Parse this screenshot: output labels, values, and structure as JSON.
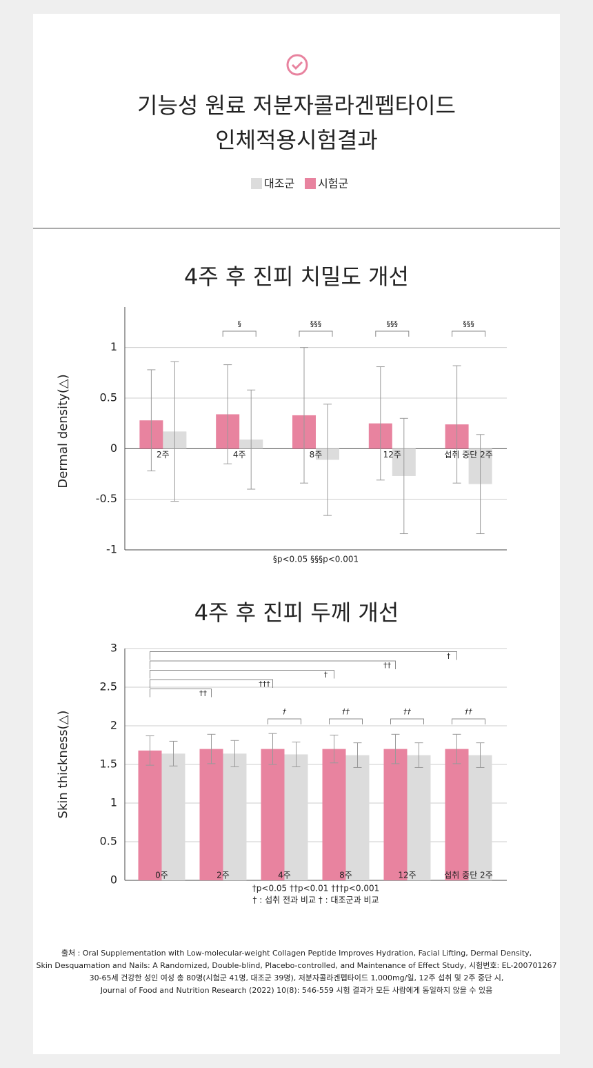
{
  "header": {
    "title_lines": [
      "기능성 원료 저분자콜라겐펩타이드",
      "인체적용시험결과"
    ]
  },
  "chart_data": [
    {
      "type": "bar",
      "title": "4주 후 진피 치밀도 개선",
      "y_label": "Dermal density(△)",
      "categories": [
        "2주",
        "4주",
        "8주",
        "12주",
        "섭취 중단 2주"
      ],
      "series": [
        {
          "name": "대조군",
          "color": "#dcdcdc",
          "values": [
            0.17,
            0.09,
            -0.11,
            -0.27,
            -0.35
          ],
          "errors": [
            0.69,
            0.49,
            0.55,
            0.57,
            0.49
          ]
        },
        {
          "name": "시험군",
          "color": "#e8839f",
          "values": [
            0.28,
            0.34,
            0.33,
            0.25,
            0.24
          ],
          "errors": [
            0.5,
            0.49,
            0.67,
            0.56,
            0.58
          ]
        }
      ],
      "significance_labels": [
        null,
        "§",
        "§§§",
        "§§§",
        "§§§"
      ],
      "ylim": [
        -1,
        1.4
      ],
      "yticks": [
        -1,
        -0.5,
        0,
        0.5,
        1
      ],
      "grid": true,
      "notes": [
        "§p<0.05  §§§p<0.001"
      ]
    },
    {
      "type": "bar",
      "title": "4주 후 진피 두께 개선",
      "y_label": "Skin thickness(△)",
      "categories": [
        "0주",
        "2주",
        "4주",
        "8주",
        "12주",
        "섭취 중단 2주"
      ],
      "series": [
        {
          "name": "대조군",
          "color": "#dcdcdc",
          "values": [
            1.64,
            1.64,
            1.63,
            1.62,
            1.62,
            1.62
          ],
          "errors": [
            0.16,
            0.17,
            0.16,
            0.16,
            0.16,
            0.16
          ]
        },
        {
          "name": "시험군",
          "color": "#e8839f",
          "values": [
            1.68,
            1.7,
            1.7,
            1.7,
            1.7,
            1.7
          ],
          "errors": [
            0.19,
            0.19,
            0.2,
            0.18,
            0.19,
            0.19
          ]
        }
      ],
      "significance_labels": [
        null,
        null,
        "†",
        "††",
        "††",
        "††"
      ],
      "baseline_labels": [
        null,
        "††",
        "†††",
        "†",
        "††",
        "†"
      ],
      "ylim": [
        0,
        3
      ],
      "yticks": [
        0,
        0.5,
        1,
        1.5,
        2,
        2.5,
        3
      ],
      "grid": true,
      "notes": [
        "†p<0.05  ††p<0.01  †††p<0.001",
        "† : 섭취 전과 비교   † : 대조군과 비교"
      ]
    }
  ],
  "source": [
    "출처 : Oral Supplementation with Low-molecular-weight Collagen Peptide Improves Hydration, Facial Lifting, Dermal Density,",
    "Skin Desquamation and Nails: A Randomized, Double-blind, Placebo-controlled, and Maintenance of Effect Study, 시험번호: EL-200701267",
    "30-65세 건강한 성인 여성 총 80명(시험군 41명, 대조군 39명), 저분자콜라겐펩타이드 1,000mg/일, 12주 섭취 및 2주 중단 시,",
    "Journal of Food and Nutrition Research (2022) 10(8): 546-559 시험 결과가 모든 사람에게 동일하지 않을 수 있음"
  ]
}
